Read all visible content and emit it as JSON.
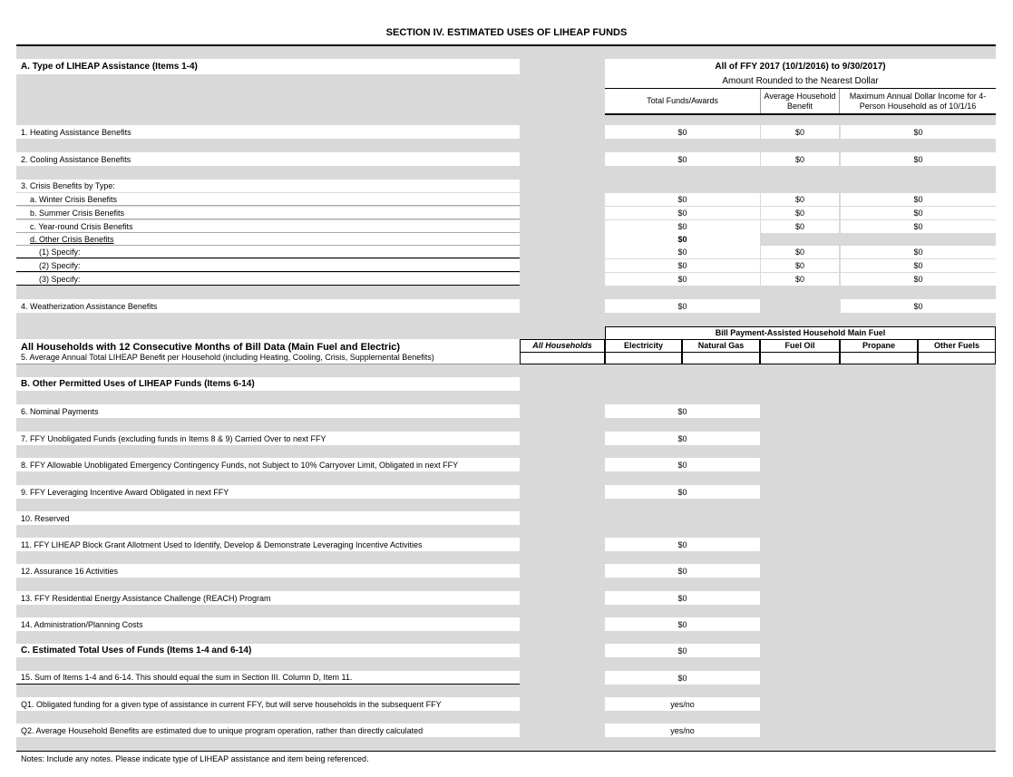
{
  "title": "SECTION IV.  ESTIMATED USES OF LIHEAP FUNDS",
  "sectionA": {
    "label": "A. Type of LIHEAP Assistance (Items 1-4)",
    "period": "All of FFY 2017 (10/1/2016) to 9/30/2017)",
    "rounding": "Amount Rounded to the Nearest Dollar",
    "columns": [
      "Total Funds/Awards",
      "Average Household Benefit",
      "Maximum Annual Dollar Income for 4-Person Household as of 10/1/16"
    ],
    "rows": [
      {
        "label": "1. Heating Assistance Benefits",
        "total": "$0",
        "avg": "$0",
        "max": "$0"
      },
      {
        "label": "2. Cooling Assistance Benefits",
        "total": "$0",
        "avg": "$0",
        "max": "$0"
      },
      {
        "label": "3. Crisis Benefits by Type:"
      },
      {
        "label": "a. Winter Crisis Benefits",
        "total": "$0",
        "avg": "$0",
        "max": "$0"
      },
      {
        "label": "b. Summer Crisis Benefits",
        "total": "$0",
        "avg": "$0",
        "max": "$0"
      },
      {
        "label": "c. Year-round Crisis Benefits",
        "total": "$0",
        "avg": "$0",
        "max": "$0"
      },
      {
        "label": "d. Other Crisis Benefits",
        "total": "$0"
      },
      {
        "label": "(1) Specify:",
        "total": "$0",
        "avg": "$0",
        "max": "$0"
      },
      {
        "label": "(2) Specify:",
        "total": "$0",
        "avg": "$0",
        "max": "$0"
      },
      {
        "label": "(3) Specify:",
        "total": "$0",
        "avg": "$0",
        "max": "$0"
      },
      {
        "label": "4. Weatherization Assistance Benefits",
        "total": "$0",
        "max": "$0"
      }
    ]
  },
  "billData": {
    "heading": "All Households with 12 Consecutive Months of Bill Data (Main Fuel and Electric)",
    "group_label": "Bill Payment-Assisted Household Main Fuel",
    "columns": [
      "All Households",
      "Electricity",
      "Natural Gas",
      "Fuel Oil",
      "Propane",
      "Other Fuels"
    ],
    "row_label": "5. Average Annual Total LIHEAP Benefit per Household (including Heating, Cooling, Crisis, Supplemental Benefits)"
  },
  "sectionB": {
    "label": "B. Other Permitted Uses of LIHEAP Funds (Items 6-14)",
    "rows": [
      {
        "label": "6. Nominal Payments",
        "total": "$0"
      },
      {
        "label": "7. FFY Unobligated Funds (excluding funds in Items 8 & 9) Carried Over to next FFY",
        "total": "$0"
      },
      {
        "label": "8. FFY Allowable Unobligated Emergency Contingency Funds, not Subject to 10% Carryover Limit, Obligated in next FFY",
        "total": "$0"
      },
      {
        "label": "9. FFY Leveraging Incentive Award Obligated in next FFY",
        "total": "$0"
      },
      {
        "label": "10. Reserved"
      },
      {
        "label": "11. FFY LIHEAP Block Grant Allotment Used to Identify, Develop & Demonstrate Leveraging Incentive Activities",
        "total": "$0"
      },
      {
        "label": "12. Assurance 16 Activities",
        "total": "$0"
      },
      {
        "label": "13. FFY Residential Energy Assistance Challenge (REACH) Program",
        "total": "$0"
      },
      {
        "label": "14. Administration/Planning Costs",
        "total": "$0"
      }
    ]
  },
  "sectionC": {
    "label": "C. Estimated Total Uses of Funds (Items 1-4 and 6-14)",
    "total": "$0",
    "rows": [
      {
        "label": "15. Sum of Items 1-4 and 6-14. This should equal the sum in Section III. Column D, Item 11.",
        "total": "$0"
      },
      {
        "label": "Q1. Obligated funding for a given type of assistance in current FFY, but will serve households in the subsequent FFY",
        "total": "yes/no"
      },
      {
        "label": "Q2. Average Household Benefits are estimated due to unique program operation, rather than directly calculated",
        "total": "yes/no"
      }
    ]
  },
  "notes": "Notes:  Include any notes. Please indicate type of LIHEAP assistance and item being referenced."
}
